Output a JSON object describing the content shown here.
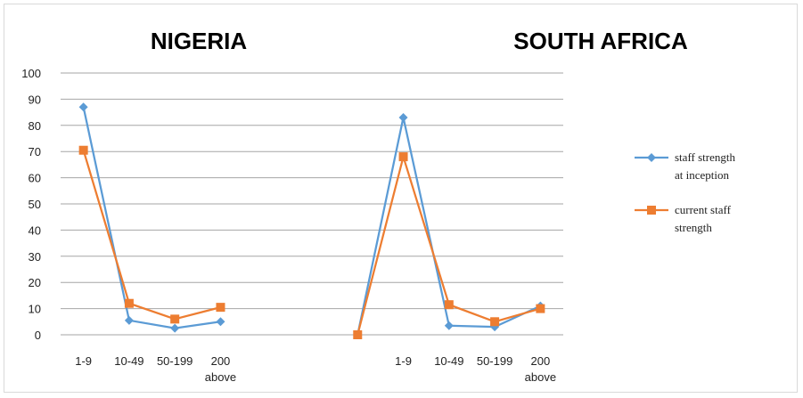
{
  "chart_data": {
    "type": "line",
    "titles": [
      "NIGERIA",
      "SOUTH AFRICA"
    ],
    "ylim": [
      0,
      100
    ],
    "yticks": [
      0,
      10,
      20,
      30,
      40,
      50,
      60,
      70,
      80,
      90,
      100
    ],
    "grid": true,
    "legend_position": "right",
    "categories": [
      [
        "1-9"
      ],
      [
        "10-49"
      ],
      [
        "50-199"
      ],
      [
        "200",
        "above"
      ],
      [
        ""
      ],
      [
        ""
      ],
      [
        ""
      ],
      [
        "1-9"
      ],
      [
        "10-49"
      ],
      [
        "50-199"
      ],
      [
        "200",
        "above"
      ]
    ],
    "series": [
      {
        "name": [
          "staff strength",
          "at inception"
        ],
        "color": "#5B9BD5",
        "marker": "diamond",
        "values": [
          87,
          5.5,
          2.5,
          5,
          null,
          null,
          0,
          83,
          3.5,
          3,
          11
        ]
      },
      {
        "name": [
          "current staff",
          "strength"
        ],
        "color": "#ED7D31",
        "marker": "square",
        "values": [
          70.5,
          12,
          6,
          10.5,
          null,
          null,
          0,
          68,
          11.5,
          5,
          10
        ]
      }
    ]
  }
}
